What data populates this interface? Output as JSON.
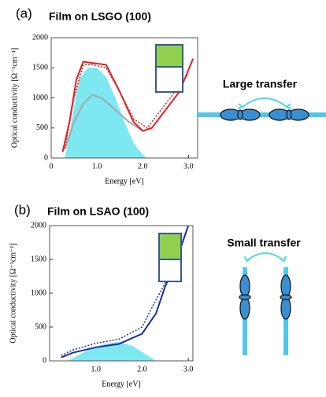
{
  "charts": [
    {
      "chart_data": {
        "type": "line",
        "panel": "(a)",
        "title": "Film on LSGO (100)",
        "annotation": "Large transfer",
        "x_label": "Energy [eV]",
        "y_label": "Optical conductivity [Ω⁻¹cm⁻¹]",
        "xlim": [
          0,
          3.2
        ],
        "ylim": [
          0,
          2000
        ],
        "xticks": [
          0,
          {
            "value": 1,
            "label": "1.0"
          },
          {
            "value": 2,
            "label": "2.0"
          },
          {
            "value": 3,
            "label": "3.0"
          }
        ],
        "yticks": [
          0,
          500,
          1000,
          1500,
          2000
        ],
        "series": [
          {
            "style": "area",
            "color": "#7de8f0",
            "x": [
              0.3,
              0.4,
              0.6,
              0.8,
              1.0,
              1.2,
              1.4,
              1.6,
              1.8,
              2.0,
              2.1
            ],
            "values": [
              0,
              400,
              1300,
              1500,
              1500,
              1350,
              1000,
              600,
              250,
              50,
              0
            ]
          },
          {
            "style": "solid",
            "color": "#a0a8b0",
            "x": [
              0.3,
              0.5,
              0.7,
              0.9,
              1.1,
              1.4,
              1.7,
              2.0
            ],
            "values": [
              150,
              600,
              900,
              1050,
              1000,
              800,
              600,
              450
            ]
          },
          {
            "style": "solid",
            "color": "#e02020",
            "x": [
              0.25,
              0.4,
              0.55,
              0.7,
              0.9,
              1.2,
              1.5,
              1.8,
              2.0,
              2.2,
              2.5,
              2.8,
              3.1
            ],
            "values": [
              100,
              600,
              1300,
              1600,
              1580,
              1550,
              1100,
              600,
              450,
              500,
              800,
              1100,
              1650
            ]
          },
          {
            "style": "dotted",
            "color": "#e02020",
            "x": [
              0.3,
              0.5,
              0.7,
              0.9,
              1.2,
              1.5,
              1.8,
              2.1,
              2.5,
              3.0
            ],
            "values": [
              150,
              1000,
              1550,
              1550,
              1500,
              1100,
              650,
              500,
              900,
              1400
            ]
          }
        ]
      }
    },
    {
      "chart_data": {
        "type": "line",
        "panel": "(b)",
        "title": "Film on LSAO (100)",
        "annotation": "Small transfer",
        "x_label": "Energy [eV]",
        "y_label": "Optical conductivity [Ω⁻¹cm⁻¹]",
        "xlim": [
          0,
          3.1
        ],
        "ylim": [
          0,
          2000
        ],
        "xticks": [
          {
            "value": 1,
            "label": "1.0"
          },
          {
            "value": 2,
            "label": "2.0"
          },
          {
            "value": 3,
            "label": "3.0"
          }
        ],
        "yticks": [
          0,
          500,
          1000,
          1500,
          2000
        ],
        "series": [
          {
            "style": "area",
            "color": "#7de8f0",
            "x": [
              0.4,
              0.8,
              1.2,
              1.5,
              1.8,
              2.0,
              2.3
            ],
            "values": [
              0,
              150,
              250,
              280,
              220,
              130,
              0
            ]
          },
          {
            "style": "solid",
            "color": "#1a2fa0",
            "x": [
              0.25,
              0.5,
              1.0,
              1.5,
              2.0,
              2.3,
              2.5,
              2.7,
              2.9,
              3.0
            ],
            "values": [
              50,
              120,
              200,
              250,
              400,
              700,
              1100,
              1400,
              1800,
              2000
            ]
          },
          {
            "style": "dotted",
            "color": "#1a2fa0",
            "x": [
              0.25,
              0.5,
              1.0,
              1.5,
              2.0,
              2.3,
              2.5,
              2.7,
              3.0
            ],
            "values": [
              80,
              160,
              260,
              320,
              500,
              900,
              1150,
              1450,
              2000
            ]
          }
        ]
      }
    }
  ]
}
